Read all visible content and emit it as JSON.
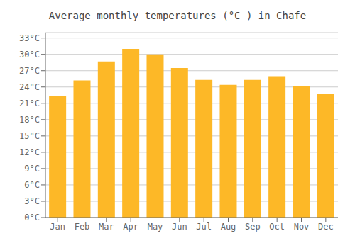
{
  "chart_data": {
    "type": "bar",
    "title": "Average monthly temperatures (°C ) in Chafe",
    "categories": [
      "Jan",
      "Feb",
      "Mar",
      "Apr",
      "May",
      "Jun",
      "Jul",
      "Aug",
      "Sep",
      "Oct",
      "Nov",
      "Dec"
    ],
    "values": [
      22.3,
      25.2,
      28.7,
      31.0,
      30.0,
      27.5,
      25.3,
      24.4,
      25.3,
      26.0,
      24.2,
      22.7
    ],
    "color": "#FDB827",
    "ylim": [
      0,
      34
    ],
    "yticks": [
      {
        "value": 0,
        "label": "0°C"
      },
      {
        "value": 3,
        "label": "3°C"
      },
      {
        "value": 6,
        "label": "6°C"
      },
      {
        "value": 9,
        "label": "9°C"
      },
      {
        "value": 12,
        "label": "12°C"
      },
      {
        "value": 15,
        "label": "15°C"
      },
      {
        "value": 18,
        "label": "18°C"
      },
      {
        "value": 21,
        "label": "21°C"
      },
      {
        "value": 24,
        "label": "24°C"
      },
      {
        "value": 27,
        "label": "27°C"
      },
      {
        "value": 30,
        "label": "30°C"
      },
      {
        "value": 33,
        "label": "33°C"
      }
    ],
    "grid": true
  }
}
